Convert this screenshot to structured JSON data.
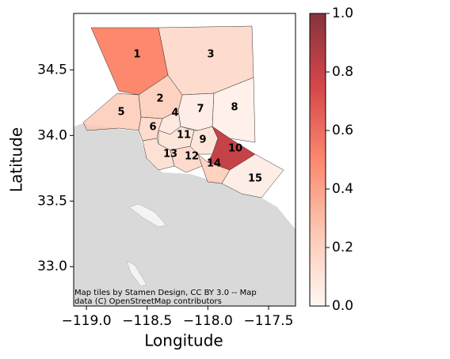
{
  "chart_data": {
    "type": "choropleth",
    "xlabel": "Longitude",
    "ylabel": "Latitude",
    "xlim": [
      -119.105,
      -117.278
    ],
    "ylim": [
      32.7,
      34.93
    ],
    "xticks": [
      {
        "value": -119.0,
        "label": "−119.0"
      },
      {
        "value": -118.5,
        "label": "−118.5"
      },
      {
        "value": -118.0,
        "label": "−118.0"
      },
      {
        "value": -117.5,
        "label": "−117.5"
      }
    ],
    "yticks": [
      {
        "value": 33.0,
        "label": "33.0"
      },
      {
        "value": 33.5,
        "label": "33.5"
      },
      {
        "value": 34.0,
        "label": "34.0"
      },
      {
        "value": 34.5,
        "label": "34.5"
      }
    ],
    "regions": [
      "1",
      "2",
      "3",
      "4",
      "5",
      "6",
      "7",
      "8",
      "9",
      "10",
      "11",
      "12",
      "13",
      "14",
      "15"
    ],
    "values": [
      0.5,
      0.2,
      0.15,
      0.08,
      0.2,
      0.15,
      0.05,
      0.04,
      0.1,
      0.8,
      0.1,
      0.15,
      0.12,
      0.2,
      0.05
    ],
    "colormap": [
      "#fff5f0",
      "#fcbba1",
      "#fb6a4a",
      "#cb181d",
      "#67000d"
    ],
    "alpha": 0.8,
    "clim": [
      0,
      1
    ],
    "cticks": [
      {
        "value": 0.0,
        "label": "0.0"
      },
      {
        "value": 0.2,
        "label": "0.2"
      },
      {
        "value": 0.4,
        "label": "0.4"
      },
      {
        "value": 0.6,
        "label": "0.6"
      },
      {
        "value": 0.8,
        "label": "0.8"
      },
      {
        "value": 1.0,
        "label": "1.0"
      }
    ],
    "attribution": [
      "Map tiles by Stamen Design, CC BY 3.0 -- Map",
      "data (C) OpenStreetMap contributors"
    ]
  }
}
